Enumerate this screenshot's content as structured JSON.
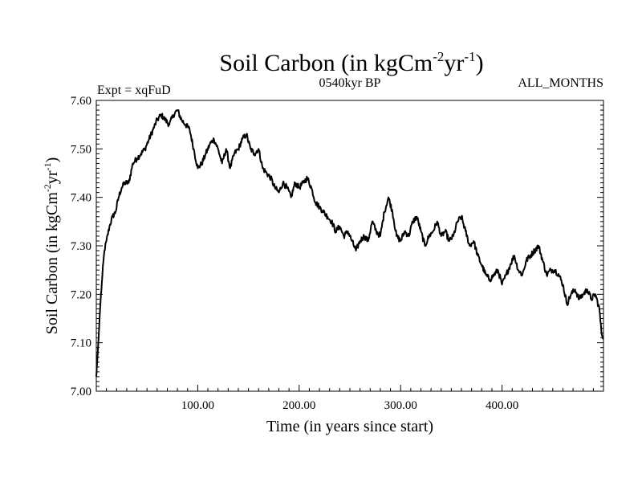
{
  "chart_data": {
    "type": "line",
    "title": {
      "prefix": "Soil Carbon (in kgCm",
      "sup1": "-2",
      "middle": "yr",
      "sup2": "-1",
      "suffix": ")"
    },
    "expt_label": "Expt = xqFuD",
    "period_label": "0540kyr BP",
    "months_label": "ALL_MONTHS",
    "xlabel": "Time (in years since start)",
    "ylabel": {
      "prefix": "Soil Carbon (in kgCm",
      "sup1": "-2",
      "middle": "yr",
      "sup2": "-1",
      "suffix": ")"
    },
    "xlim": [
      0,
      500
    ],
    "ylim": [
      7.0,
      7.6
    ],
    "x_ticks": [
      100,
      200,
      300,
      400
    ],
    "x_tick_labels": [
      "100.00",
      "200.00",
      "300.00",
      "400.00"
    ],
    "y_ticks": [
      7.0,
      7.1,
      7.2,
      7.3,
      7.4,
      7.5,
      7.6
    ],
    "y_tick_labels": [
      "7.00",
      "7.10",
      "7.20",
      "7.30",
      "7.40",
      "7.50",
      "7.60"
    ],
    "series": [
      {
        "name": "Soil Carbon",
        "x": [
          0,
          2,
          4,
          6,
          8,
          10,
          13,
          16,
          19,
          22,
          25,
          28,
          32,
          36,
          40,
          44,
          48,
          52,
          56,
          60,
          64,
          68,
          72,
          76,
          80,
          84,
          88,
          92,
          96,
          100,
          104,
          108,
          112,
          116,
          120,
          124,
          128,
          132,
          136,
          140,
          144,
          148,
          152,
          156,
          160,
          164,
          168,
          172,
          176,
          180,
          184,
          188,
          192,
          196,
          200,
          204,
          208,
          212,
          216,
          220,
          224,
          228,
          232,
          236,
          240,
          244,
          248,
          252,
          256,
          260,
          264,
          268,
          272,
          276,
          280,
          284,
          288,
          292,
          296,
          300,
          304,
          308,
          312,
          316,
          320,
          324,
          328,
          332,
          336,
          340,
          344,
          348,
          352,
          356,
          360,
          364,
          368,
          372,
          376,
          380,
          384,
          388,
          392,
          396,
          400,
          404,
          408,
          412,
          416,
          420,
          424,
          428,
          432,
          436,
          440,
          444,
          448,
          452,
          456,
          460,
          464,
          468,
          472,
          476,
          480,
          484,
          488,
          492,
          496,
          498,
          500
        ],
        "values": [
          7.03,
          7.1,
          7.18,
          7.24,
          7.29,
          7.31,
          7.34,
          7.36,
          7.37,
          7.4,
          7.42,
          7.43,
          7.43,
          7.47,
          7.48,
          7.49,
          7.5,
          7.52,
          7.54,
          7.56,
          7.57,
          7.56,
          7.55,
          7.57,
          7.58,
          7.56,
          7.55,
          7.54,
          7.5,
          7.46,
          7.47,
          7.49,
          7.51,
          7.52,
          7.5,
          7.47,
          7.5,
          7.46,
          7.49,
          7.5,
          7.52,
          7.53,
          7.5,
          7.49,
          7.5,
          7.46,
          7.45,
          7.44,
          7.42,
          7.41,
          7.43,
          7.42,
          7.4,
          7.43,
          7.42,
          7.43,
          7.44,
          7.42,
          7.39,
          7.38,
          7.37,
          7.36,
          7.35,
          7.33,
          7.34,
          7.32,
          7.33,
          7.31,
          7.29,
          7.31,
          7.32,
          7.31,
          7.35,
          7.33,
          7.32,
          7.37,
          7.4,
          7.37,
          7.32,
          7.31,
          7.33,
          7.32,
          7.35,
          7.36,
          7.33,
          7.3,
          7.32,
          7.33,
          7.35,
          7.32,
          7.33,
          7.31,
          7.32,
          7.35,
          7.36,
          7.33,
          7.3,
          7.31,
          7.28,
          7.26,
          7.24,
          7.23,
          7.24,
          7.25,
          7.22,
          7.24,
          7.26,
          7.28,
          7.25,
          7.24,
          7.27,
          7.28,
          7.29,
          7.3,
          7.27,
          7.24,
          7.25,
          7.25,
          7.24,
          7.22,
          7.18,
          7.2,
          7.21,
          7.19,
          7.2,
          7.21,
          7.19,
          7.2,
          7.17,
          7.12,
          7.11
        ]
      }
    ]
  }
}
